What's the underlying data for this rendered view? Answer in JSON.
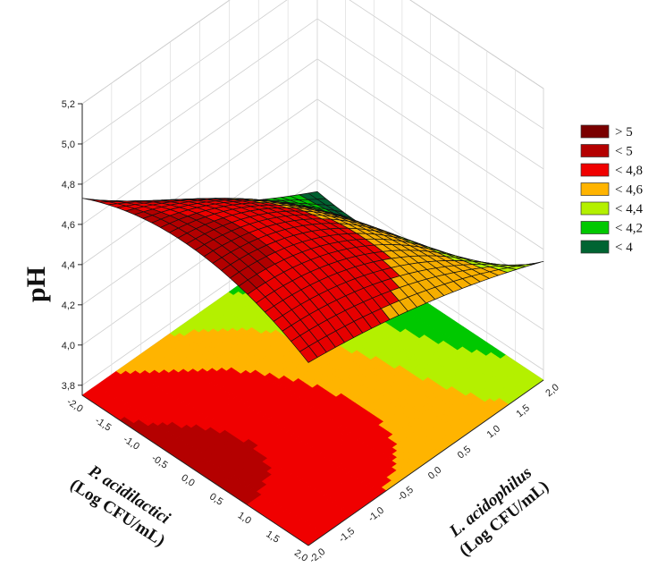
{
  "chart_data": {
    "type": "surface3d",
    "title": "",
    "zlabel": "pH",
    "xlabel_line1": "P. acidilactici",
    "xlabel_line2": "(Log CFU/mL)",
    "ylabel_line1": "L. acidophilus",
    "ylabel_line2": "(Log CFU/mL)",
    "x_ticks": [
      "-2,0",
      "-1,5",
      "-1,0",
      "-0,5",
      "0,0",
      "0,5",
      "1,0",
      "1,5",
      "2,0"
    ],
    "y_ticks": [
      "-2,0",
      "-1,5",
      "-1,0",
      "-0,5",
      "0,0",
      "0,5",
      "1,0",
      "1,5",
      "2,0"
    ],
    "z_ticks": [
      "3,8",
      "4,0",
      "4,2",
      "4,4",
      "4,6",
      "4,8",
      "5,0",
      "5,2"
    ],
    "xlim": [
      -2,
      2
    ],
    "ylim": [
      -2,
      2
    ],
    "zlim": [
      3.75,
      5.2
    ],
    "grid": true,
    "legend_position": "right",
    "legend": [
      {
        "label": "> 5",
        "color": "#7a0000"
      },
      {
        "label": "< 5",
        "color": "#b40000"
      },
      {
        "label": "< 4,8",
        "color": "#f00000"
      },
      {
        "label": "< 4,6",
        "color": "#ffb400"
      },
      {
        "label": "< 4,4",
        "color": "#b4f000"
      },
      {
        "label": "< 4,2",
        "color": "#00c800"
      },
      {
        "label": "< 4",
        "color": "#006432"
      }
    ],
    "surface_samples": [
      {
        "x": -2,
        "y": -2,
        "z": 4.73
      },
      {
        "x": -2,
        "y": 2,
        "z": 3.94
      },
      {
        "x": 2,
        "y": -2,
        "z": 4.66
      },
      {
        "x": 2,
        "y": 2,
        "z": 4.34
      },
      {
        "x": 0,
        "y": 0,
        "z": 4.61
      },
      {
        "x": -1,
        "y": 0,
        "z": 4.55
      },
      {
        "x": 1,
        "y": 0,
        "z": 4.72
      },
      {
        "x": 0,
        "y": -1,
        "z": 4.86
      },
      {
        "x": 0,
        "y": 1,
        "z": 4.28
      }
    ]
  }
}
